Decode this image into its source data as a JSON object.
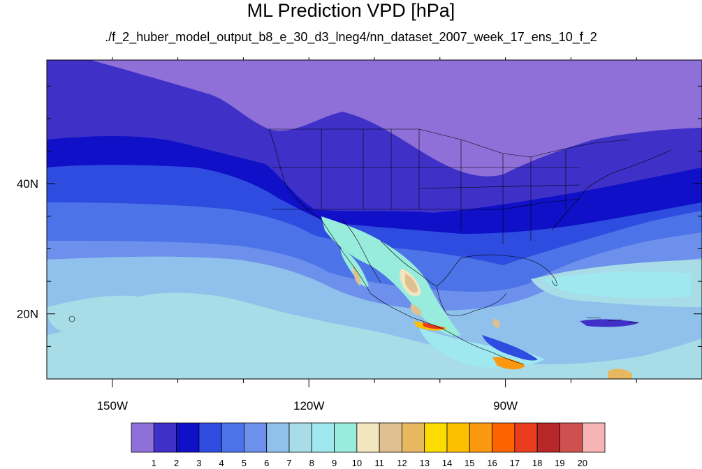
{
  "title": "ML Prediction VPD [hPa]",
  "subtitle": "./f_2_huber_model_output_b8_e_30_d3_lneg4/nn_dataset_2007_week_17_ens_10_f_2",
  "map": {
    "lon_range": [
      -160,
      -60
    ],
    "lat_range": [
      10,
      59
    ],
    "lat_ticks": [
      {
        "value": 40,
        "label": "40N"
      },
      {
        "value": 20,
        "label": "20N"
      }
    ],
    "lon_ticks": [
      {
        "value": -150,
        "label": "150W"
      },
      {
        "value": -120,
        "label": "120W"
      },
      {
        "value": -90,
        "label": "90W"
      }
    ],
    "background_color": "#8e70d8"
  },
  "colorbar": {
    "labels": [
      "1",
      "2",
      "3",
      "4",
      "5",
      "6",
      "7",
      "8",
      "9",
      "10",
      "11",
      "12",
      "13",
      "14",
      "15",
      "16",
      "17",
      "18",
      "19",
      "20"
    ],
    "colors": [
      "#8e70d8",
      "#3f30c8",
      "#0f10c8",
      "#2e4ce0",
      "#4c74e8",
      "#6c90ec",
      "#90c0ec",
      "#a8dce6",
      "#a0e8f0",
      "#98ecdc",
      "#f2e6c0",
      "#e0c090",
      "#e8b860",
      "#fcdc00",
      "#fcc000",
      "#fc9810",
      "#fc6400",
      "#e83c1c",
      "#b82828",
      "#d05050",
      "#f8b4b4"
    ]
  }
}
